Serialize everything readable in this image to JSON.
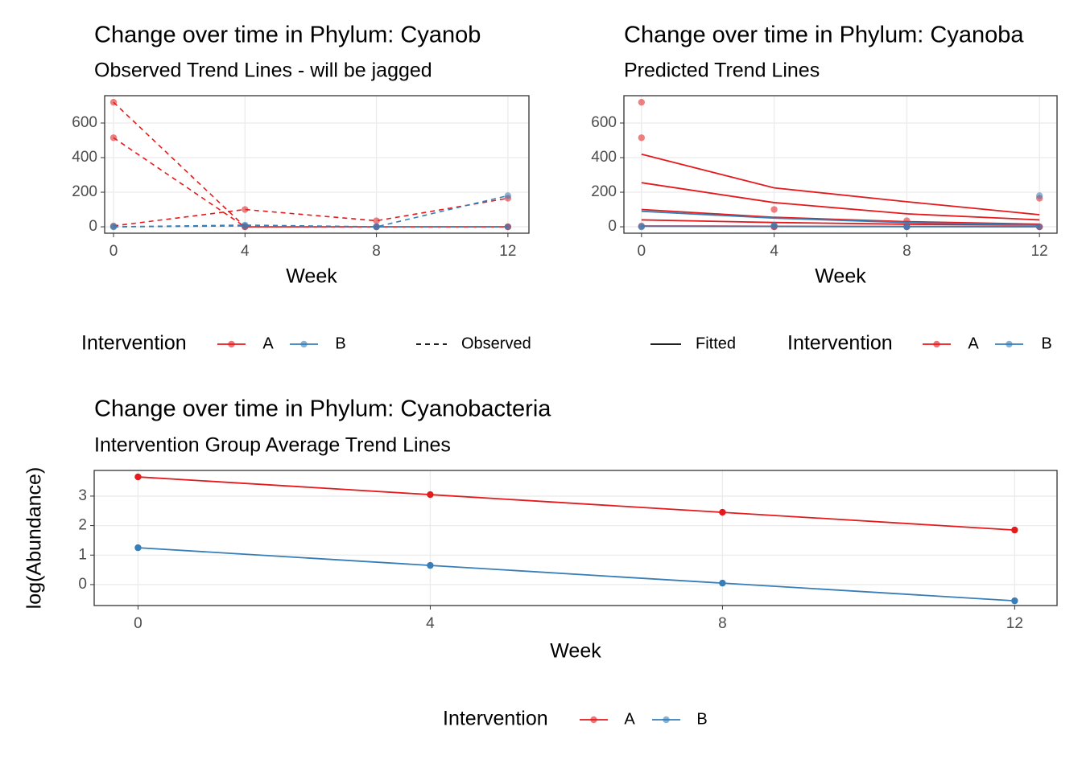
{
  "chart_data": [
    {
      "type": "line",
      "title": "Change over time in Phylum: Cyanob",
      "subtitle": "Observed Trend Lines - will be jagged",
      "x_label": "Week",
      "x": [
        0,
        4,
        8,
        12
      ],
      "xlim": [
        -0.27,
        12.64
      ],
      "xticks": [
        0,
        4,
        8,
        12
      ],
      "ylim": [
        -37,
        758
      ],
      "yticks": [
        0,
        200,
        400,
        600
      ],
      "grid": true,
      "legend_title": "Intervention",
      "linetype_label": "Observed",
      "linestyle": "dashed",
      "series": [
        {
          "name": "A",
          "color": "#e41a1c",
          "subjects": [
            [
              720,
              0,
              0,
              0
            ],
            [
              515,
              0,
              0,
              0
            ],
            [
              5,
              100,
              35,
              165
            ]
          ]
        },
        {
          "name": "B",
          "color": "#377eb8",
          "subjects": [
            [
              0,
              10,
              0,
              180
            ],
            [
              0,
              5,
              0,
              0
            ]
          ]
        }
      ]
    },
    {
      "type": "line",
      "title": "Change over time in Phylum: Cyanoba",
      "subtitle": "Predicted Trend Lines",
      "x_label": "Week",
      "x": [
        0,
        4,
        8,
        12
      ],
      "xlim": [
        -0.53,
        12.53
      ],
      "xticks": [
        0,
        4,
        8,
        12
      ],
      "ylim": [
        -37,
        758
      ],
      "yticks": [
        0,
        200,
        400,
        600
      ],
      "grid": true,
      "legend_title": "Intervention",
      "linetype_label": "Fitted",
      "linestyle": "solid",
      "series": [
        {
          "name": "A",
          "color": "#e41a1c",
          "subjects": [
            [
              720,
              0,
              0,
              0
            ],
            [
              515,
              0,
              0,
              0
            ],
            [
              5,
              100,
              35,
              165
            ]
          ],
          "fitted": [
            [
              420,
              225,
              145,
              70
            ],
            [
              255,
              140,
              75,
              40
            ],
            [
              100,
              55,
              30,
              15
            ],
            [
              40,
              25,
              15,
              10
            ],
            [
              5,
              3,
              2,
              1
            ]
          ]
        },
        {
          "name": "B",
          "color": "#377eb8",
          "subjects": [
            [
              0,
              10,
              0,
              180
            ],
            [
              0,
              5,
              0,
              0
            ]
          ],
          "fitted": [
            [
              90,
              50,
              25,
              10
            ],
            [
              3,
              2,
              1,
              1
            ]
          ]
        }
      ]
    },
    {
      "type": "line",
      "title": "Change over time in Phylum: Cyanobacteria",
      "subtitle": "Intervention Group Average Trend Lines",
      "x_label": "Week",
      "y_label": "log(Abundance)",
      "x": [
        0,
        4,
        8,
        12
      ],
      "xlim": [
        -0.6,
        12.58
      ],
      "xticks": [
        0,
        4,
        8,
        12
      ],
      "ylim": [
        -0.71,
        3.87
      ],
      "yticks": [
        0,
        1,
        2,
        3
      ],
      "grid": true,
      "legend_title": "Intervention",
      "series": [
        {
          "name": "A",
          "color": "#e41a1c",
          "values": [
            3.65,
            3.05,
            2.45,
            1.85
          ]
        },
        {
          "name": "B",
          "color": "#377eb8",
          "values": [
            1.25,
            0.65,
            0.05,
            -0.55
          ]
        }
      ]
    }
  ]
}
